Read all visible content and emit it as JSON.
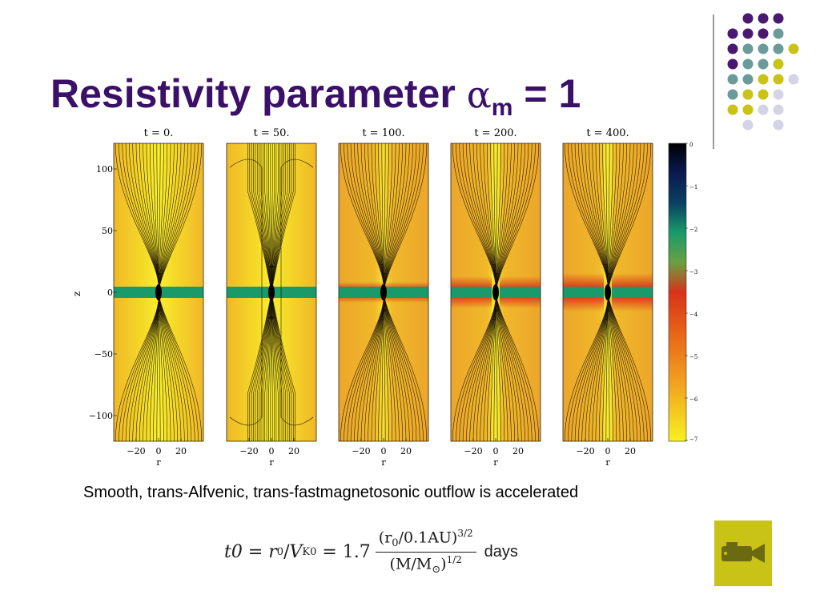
{
  "slide": {
    "title_prefix": "Resistivity parameter ",
    "title_alpha": "α",
    "title_sub": "m",
    "title_suffix": " = 1",
    "caption": "Smooth, trans-Alfvenic, trans-fastmagnetosonic outflow is accelerated"
  },
  "figure": {
    "panels": [
      {
        "label": "t = 0."
      },
      {
        "label": "t = 50."
      },
      {
        "label": "t = 100."
      },
      {
        "label": "t = 200."
      },
      {
        "label": "t = 400."
      }
    ],
    "y_axis_label": "z",
    "x_axis_label": "r",
    "y_ticks": [
      "100",
      "50",
      "0",
      "−50",
      "−100"
    ],
    "x_ticks": [
      "−20",
      "0",
      "20"
    ],
    "colorbar_ticks": [
      "0",
      "−1",
      "−2",
      "−3",
      "−4",
      "−5",
      "−6",
      "−7"
    ],
    "colors": {
      "background_yellow": "#f5dc28",
      "orange": "#e88a1a",
      "red": "#d8321a",
      "green": "#1a9a6a",
      "dark_blue": "#0a1a50",
      "black": "#000000"
    }
  },
  "formula": {
    "lhs": "t0",
    "eq1": " = ",
    "r0": "r",
    "r0_sub": "0",
    "slash": "/",
    "vk": "V",
    "vk_sub": "K0",
    "eq2": " = 1.7",
    "num": "(r",
    "num_sub": "0",
    "num_rest": "/0.1AU)",
    "num_exp": "3/2",
    "den": "(M/M",
    "den_sub": "⊙",
    "den_rest": ")",
    "den_exp": "1/2",
    "unit": "days"
  },
  "decor": {
    "dot_colors": {
      "purple": "#4a1870",
      "teal": "#6a9a9a",
      "yellow": "#c8c316",
      "lavender": "#d4d4e6"
    },
    "movie_button_color": "#c8c316",
    "movie_icon": "movie-camera-icon"
  }
}
